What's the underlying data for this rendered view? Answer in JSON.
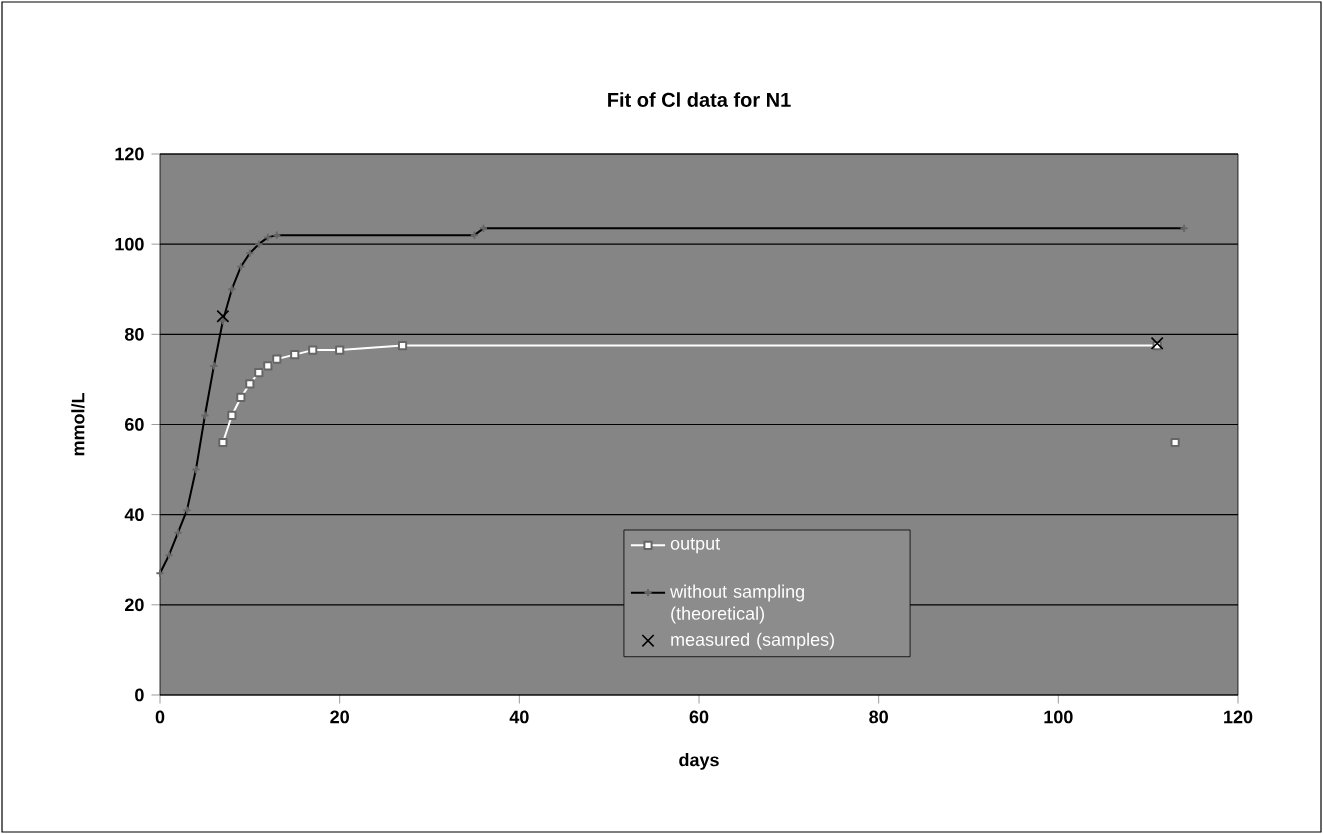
{
  "chart_data": {
    "type": "line",
    "title": "Fit of Cl data for N1",
    "xlabel": "days",
    "ylabel": "mmol/L",
    "xlim": [
      0,
      120
    ],
    "xticks": [
      0,
      20,
      40,
      60,
      80,
      100,
      120
    ],
    "ylim": [
      0,
      120
    ],
    "yticks": [
      0,
      20,
      40,
      60,
      80,
      100,
      120
    ],
    "grid": "y",
    "legend": "bottom",
    "series": [
      {
        "name": "output",
        "color": "#ffffff",
        "marker": "square",
        "x": [
          7,
          8,
          9,
          10,
          11,
          12,
          13,
          15,
          17,
          20,
          27,
          111,
          112,
          113
        ],
        "values": [
          56,
          62,
          66,
          69,
          71.5,
          73,
          74.5,
          75.5,
          76.5,
          76.5,
          77.5,
          77.5,
          null,
          56
        ]
      },
      {
        "name": "without sampling (theoretical)",
        "color": "#000000",
        "marker": "cross",
        "x": [
          0,
          1,
          2,
          3,
          4,
          5,
          6,
          7,
          8,
          9,
          10,
          11,
          12,
          13,
          35,
          36,
          114
        ],
        "values": [
          27,
          31,
          36,
          41,
          50,
          62,
          73,
          83,
          90,
          95,
          98,
          100,
          101.5,
          102,
          102,
          103.5,
          103.5
        ]
      },
      {
        "name": "measured (samples)",
        "type": "scatter",
        "color": "#000000",
        "marker": "x",
        "x": [
          7,
          111
        ],
        "values": [
          84,
          78
        ]
      }
    ]
  }
}
